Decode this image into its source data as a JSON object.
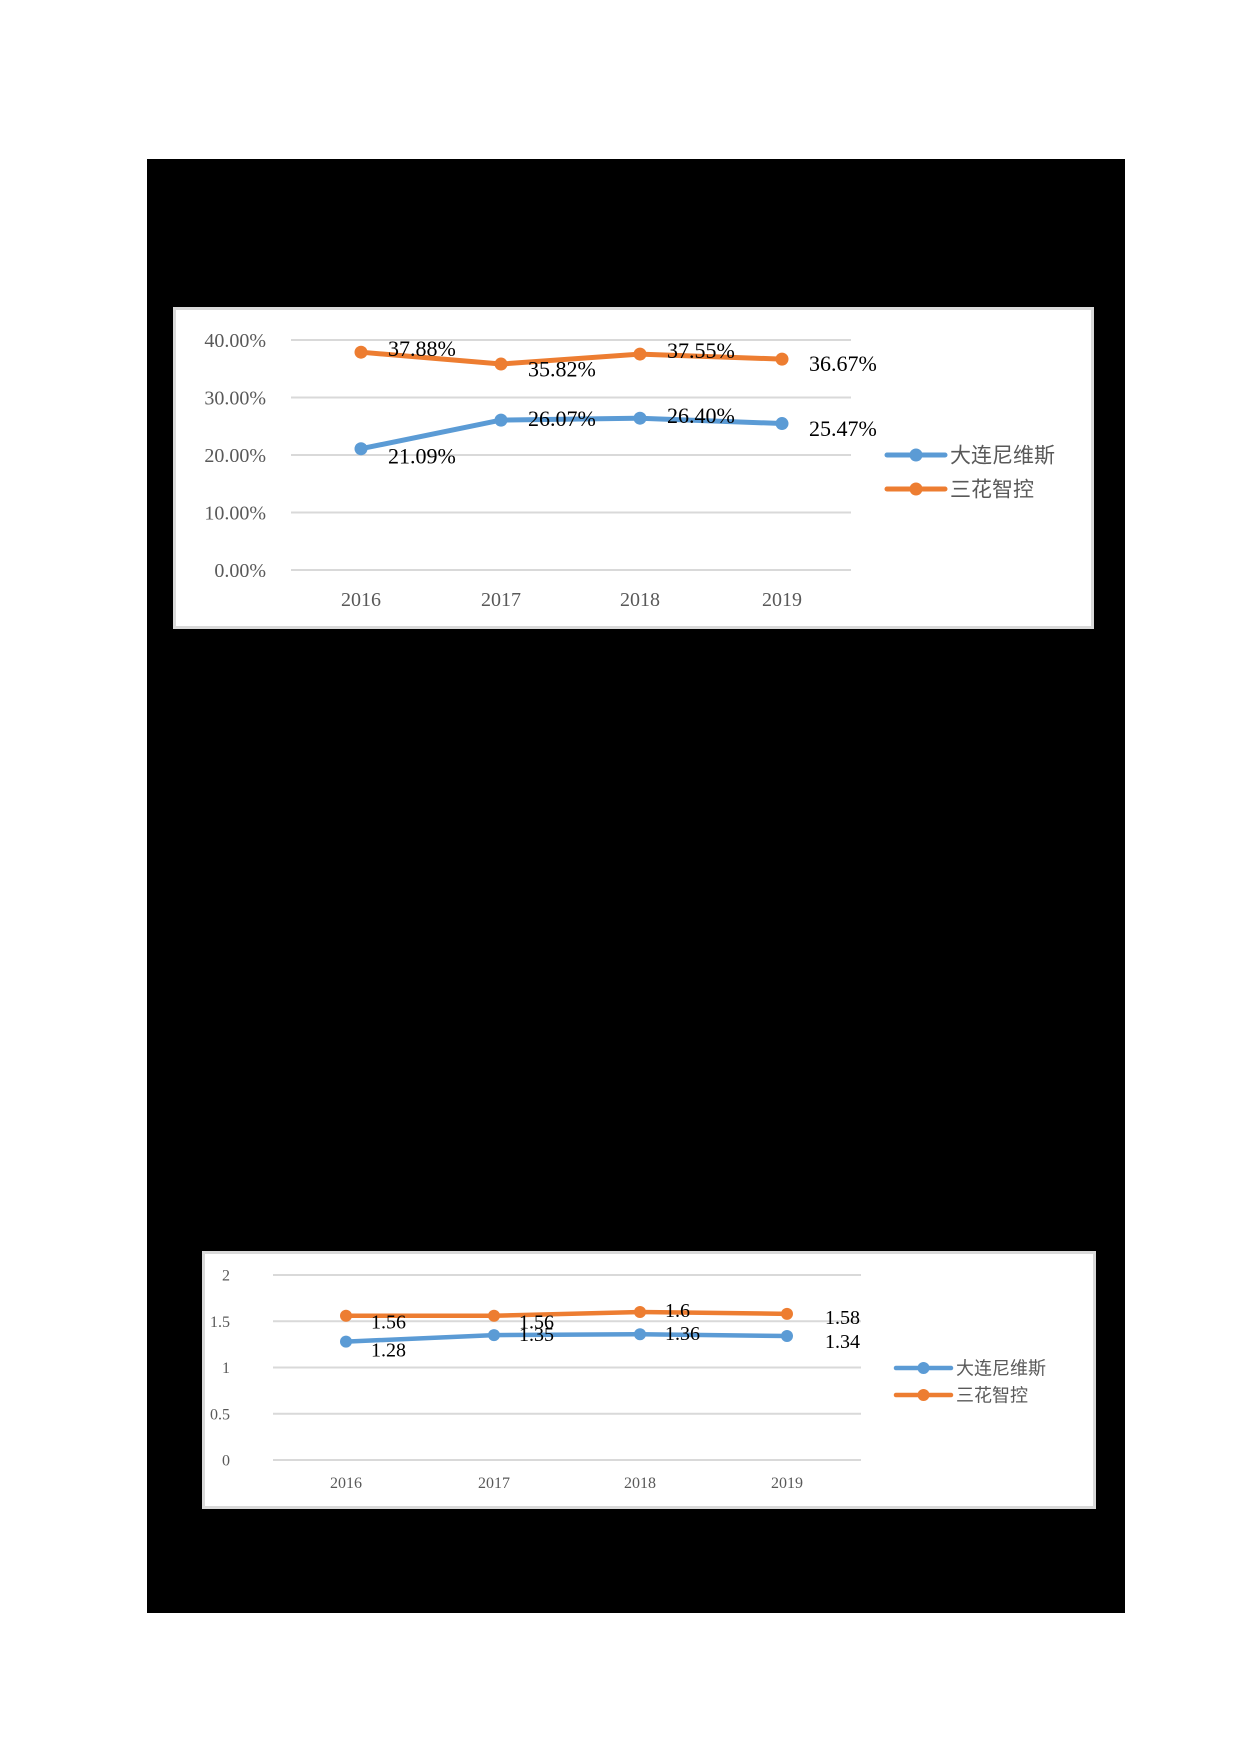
{
  "page": {
    "frame_color": "#000000",
    "background": "#ffffff"
  },
  "chart_data": [
    {
      "type": "line",
      "title": "",
      "xlabel": "",
      "ylabel": "",
      "categories": [
        "2016",
        "2017",
        "2018",
        "2019"
      ],
      "y_ticks": [
        "0.00%",
        "10.00%",
        "20.00%",
        "30.00%",
        "40.00%"
      ],
      "ylim": [
        0,
        40
      ],
      "grid": true,
      "legend_position": "right",
      "series": [
        {
          "name": "大连尼维斯",
          "color": "#5B9BD5",
          "values": [
            21.09,
            26.07,
            26.4,
            25.47
          ],
          "labels": [
            "21.09%",
            "26.07%",
            "26.40%",
            "25.47%"
          ]
        },
        {
          "name": "三花智控",
          "color": "#ED7D31",
          "values": [
            37.88,
            35.82,
            37.55,
            36.67
          ],
          "labels": [
            "37.88%",
            "35.82%",
            "37.55%",
            "36.67%"
          ]
        }
      ]
    },
    {
      "type": "line",
      "title": "",
      "xlabel": "",
      "ylabel": "",
      "categories": [
        "2016",
        "2017",
        "2018",
        "2019"
      ],
      "y_ticks": [
        "0",
        "0.5",
        "1",
        "1.5",
        "2"
      ],
      "ylim": [
        0,
        2
      ],
      "grid": true,
      "legend_position": "right",
      "series": [
        {
          "name": "大连尼维斯",
          "color": "#5B9BD5",
          "values": [
            1.28,
            1.35,
            1.36,
            1.34
          ],
          "labels": [
            "1.28",
            "1.35",
            "1.36",
            "1.34"
          ]
        },
        {
          "name": "三花智控",
          "color": "#ED7D31",
          "values": [
            1.56,
            1.56,
            1.6,
            1.58
          ],
          "labels": [
            "1.56",
            "1.56",
            "1.6",
            "1.58"
          ]
        }
      ]
    }
  ]
}
